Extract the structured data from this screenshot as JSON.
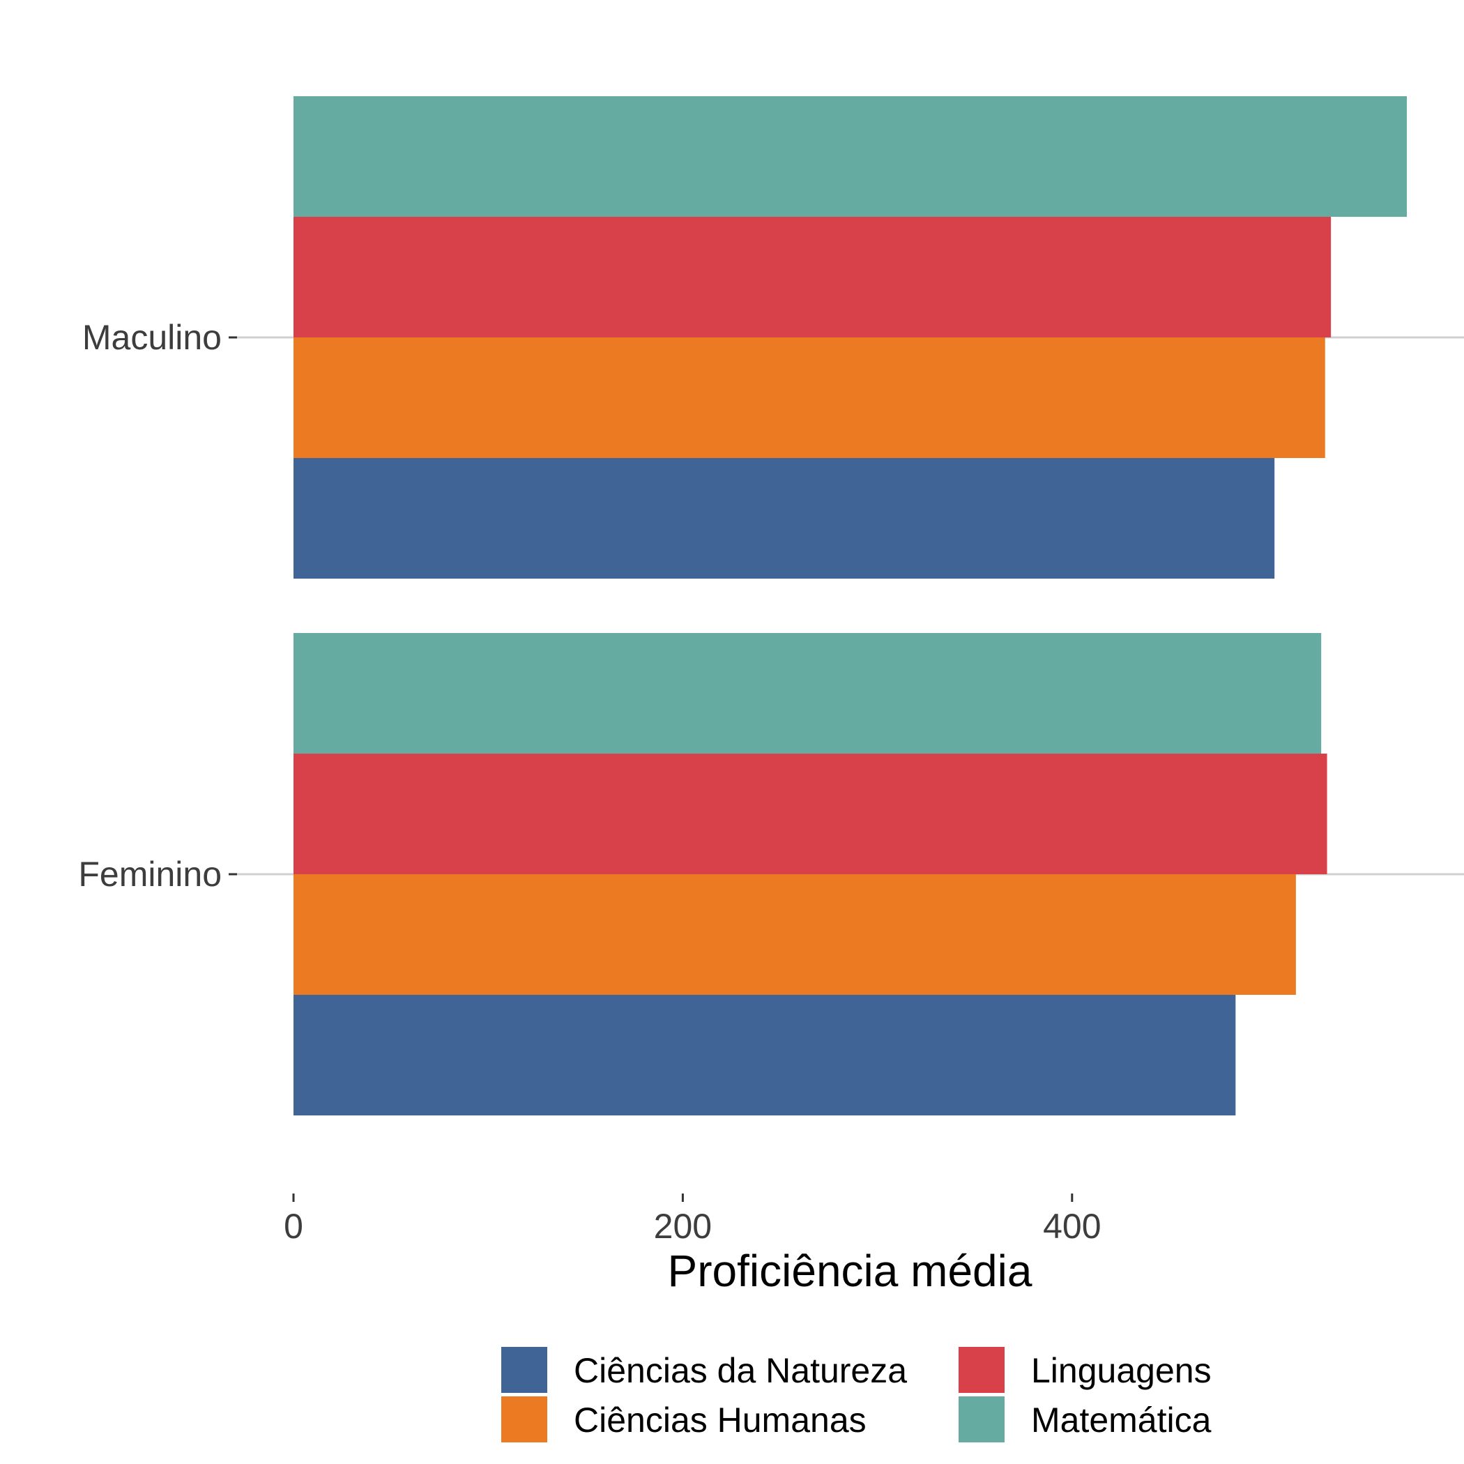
{
  "chart_data": {
    "type": "bar",
    "orientation": "horizontal",
    "categories": [
      "Maculino",
      "Feminino"
    ],
    "series": [
      {
        "name": "Ciências da Natureza",
        "color": "#3f6495",
        "values": [
          504,
          484
        ]
      },
      {
        "name": "Ciências Humanas",
        "color": "#eb7a22",
        "values": [
          530,
          515
        ]
      },
      {
        "name": "Linguagens",
        "color": "#d8414a",
        "values": [
          533,
          531
        ]
      },
      {
        "name": "Matemática",
        "color": "#65aba2",
        "values": [
          572,
          528
        ]
      }
    ],
    "xticks": [
      "0",
      "200",
      "400"
    ],
    "xlabel": "Proficiência média",
    "ylabel": "",
    "title": "",
    "xlim": [
      0,
      600
    ],
    "grid": "major-y",
    "legend": "bottom"
  }
}
